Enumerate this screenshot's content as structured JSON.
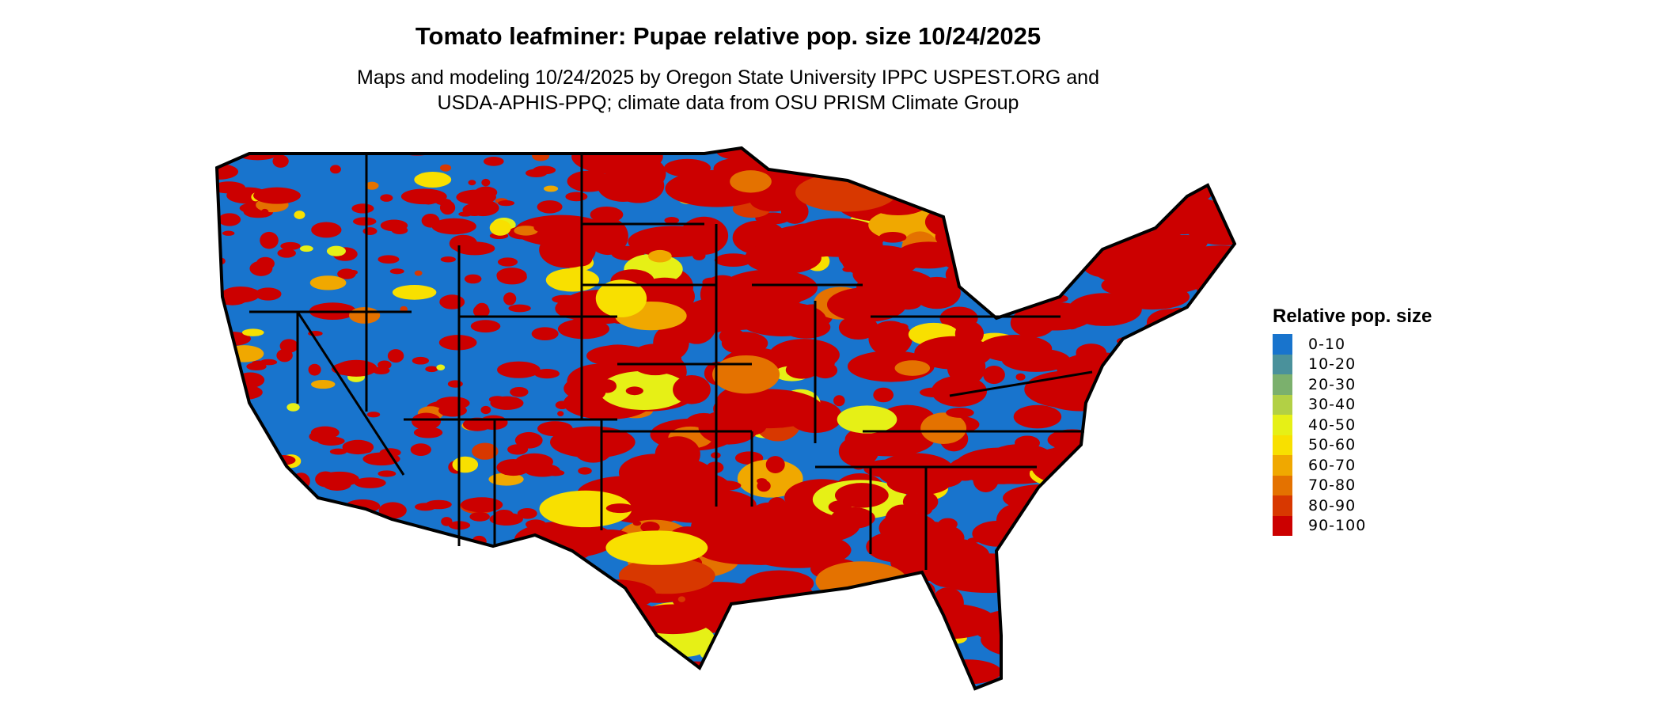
{
  "title": "Tomato leafminer: Pupae relative pop. size 10/24/2025",
  "subtitle_line1": "Maps and modeling 10/24/2025 by Oregon State University IPPC USPEST.ORG and",
  "subtitle_line2": "USDA-APHIS-PPQ; climate data from OSU PRISM Climate Group",
  "legend": {
    "title": "Relative pop. size",
    "items": [
      {
        "label": "0-10",
        "color": "#1874CD"
      },
      {
        "label": "10-20",
        "color": "#4A919B"
      },
      {
        "label": "20-30",
        "color": "#7BB06D"
      },
      {
        "label": "30-40",
        "color": "#B2D045"
      },
      {
        "label": "40-50",
        "color": "#E6F016"
      },
      {
        "label": "50-60",
        "color": "#F8E000"
      },
      {
        "label": "60-70",
        "color": "#F0A800"
      },
      {
        "label": "70-80",
        "color": "#E47200"
      },
      {
        "label": "80-90",
        "color": "#D83800"
      },
      {
        "label": "90-100",
        "color": "#CC0000"
      }
    ]
  }
}
